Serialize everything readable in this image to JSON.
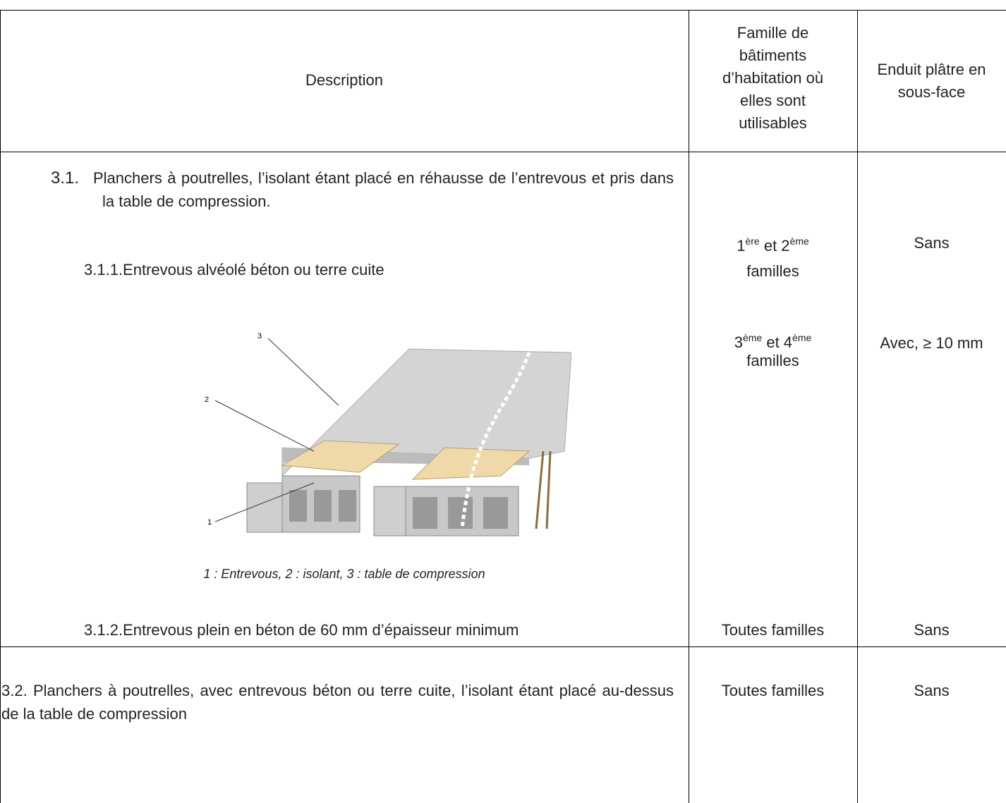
{
  "header": {
    "description": "Description",
    "famille": [
      "Famille de",
      "bâtiments",
      "d’habitation où",
      "elles sont",
      "utilisables"
    ],
    "enduit": [
      "Enduit plâtre en",
      "sous-face"
    ]
  },
  "rows": [
    {
      "number": "3.1.",
      "text": "Planchers à poutrelles, l’isolant étant placé en réhausse de l’entrevous et pris dans la table de compression.",
      "sub1": "3.1.1.Entrevous alvéolé béton ou terre cuite",
      "figure": {
        "labels": [
          "1",
          "2",
          "3"
        ],
        "caption": "1 : Entrevous, 2 : isolant, 3 : table de compression"
      },
      "sub2": "3.1.2.Entrevous plein en béton de 60 mm d’épaisseur minimum",
      "famille": [
        {
          "parts": [
            "1",
            "ère",
            " et 2",
            "ème"
          ],
          "line2": "familles"
        },
        {
          "parts": [
            "3",
            "ème",
            " et 4",
            "ème"
          ],
          "line2": "familles"
        },
        {
          "text": "Toutes familles"
        }
      ],
      "enduit": [
        "Sans",
        "Avec, ≥ 10 mm",
        "Sans"
      ]
    },
    {
      "text": "3.2. Planchers à poutrelles, avec entrevous béton ou terre cuite, l’isolant étant placé au-dessus de la table de compression",
      "famille": "Toutes familles",
      "enduit": "Sans"
    }
  ]
}
